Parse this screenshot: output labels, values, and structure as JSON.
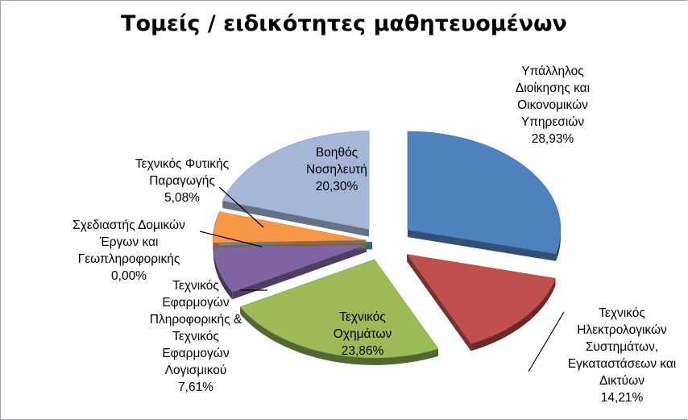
{
  "chart_data": {
    "type": "pie",
    "title": "Τομείς / ειδικότητες μαθητευομένων",
    "slices": [
      {
        "label_lines": [
          "Υπάλληλος",
          "Διοίκησης και",
          "Οικονομικών",
          "Υπηρεσιών"
        ],
        "value": 28.93,
        "value_label": "28,93%",
        "color": "#4F81BD"
      },
      {
        "label_lines": [
          "Τεχνικός",
          "Ηλεκτρολογικών",
          "Συστημάτων,",
          "Εγκαταστάσεων και",
          "Δικτύων"
        ],
        "value": 14.21,
        "value_label": "14,21%",
        "color": "#C0504D"
      },
      {
        "label_lines": [
          "Τεχνικός",
          "Οχημάτων"
        ],
        "value": 23.86,
        "value_label": "23,86%",
        "color": "#9BBB59"
      },
      {
        "label_lines": [
          "Τεχνικός",
          "Εφαρμογών",
          "Πληροφορικής &",
          "Τεχνικός",
          "Εφαρμογών",
          "Λογισμικού"
        ],
        "value": 7.61,
        "value_label": "7,61%",
        "color": "#8064A2"
      },
      {
        "label_lines": [
          "Σχεδιαστής Δομικών",
          "Έργων και",
          "Γεωπληροφορικής"
        ],
        "value": 0.0,
        "value_label": "0,00%",
        "color": "#4BACC6"
      },
      {
        "label_lines": [
          "Τεχνικός Φυτικής",
          "Παραγωγής"
        ],
        "value": 5.08,
        "value_label": "5,08%",
        "color": "#F79646"
      },
      {
        "label_lines": [
          "Βοηθός",
          "Νοσηλευτή"
        ],
        "value": 20.3,
        "value_label": "20,30%",
        "color": "#A5B6D9"
      }
    ]
  }
}
